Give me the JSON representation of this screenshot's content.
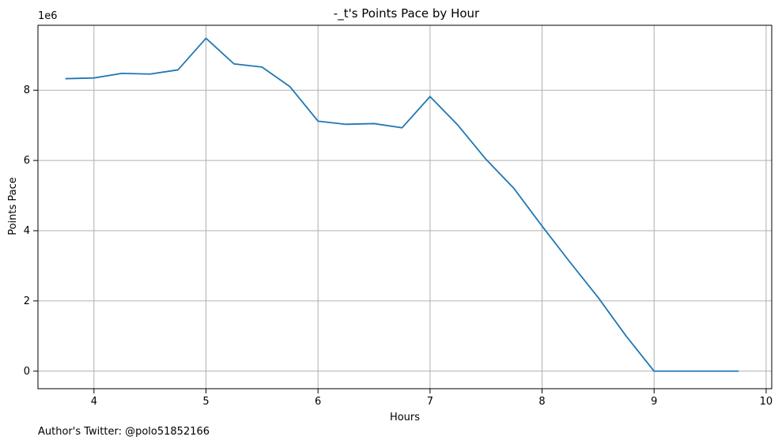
{
  "chart_data": {
    "type": "line",
    "title": "-_t's Points Pace by Hour",
    "xlabel": "Hours",
    "ylabel": "Points Pace",
    "y_offset_label": "1e6",
    "footer": "Author's Twitter: @polo51852166",
    "xlim": [
      3.5,
      10.05
    ],
    "ylim": [
      -0.5,
      9.85
    ],
    "x_ticks": [
      4,
      5,
      6,
      7,
      8,
      9,
      10
    ],
    "y_ticks": [
      0,
      2,
      4,
      6,
      8
    ],
    "grid": true,
    "line_color": "#1f77b4",
    "grid_color": "#b0b0b0",
    "series": [
      {
        "x": [
          3.75,
          4.0,
          4.25,
          4.5,
          4.75,
          5.0,
          5.25,
          5.5,
          5.75,
          6.0,
          6.25,
          6.5,
          6.75,
          7.0,
          7.25,
          7.5,
          7.75,
          8.0,
          8.25,
          8.5,
          8.75,
          9.0,
          9.25,
          9.5,
          9.75
        ],
        "y": [
          8.33,
          8.35,
          8.48,
          8.46,
          8.58,
          9.48,
          8.75,
          8.66,
          8.1,
          7.12,
          7.03,
          7.05,
          6.93,
          7.82,
          7.0,
          6.03,
          5.2,
          4.13,
          3.1,
          2.1,
          1.0,
          0.0,
          0.0,
          0.0,
          0.0
        ]
      }
    ]
  }
}
